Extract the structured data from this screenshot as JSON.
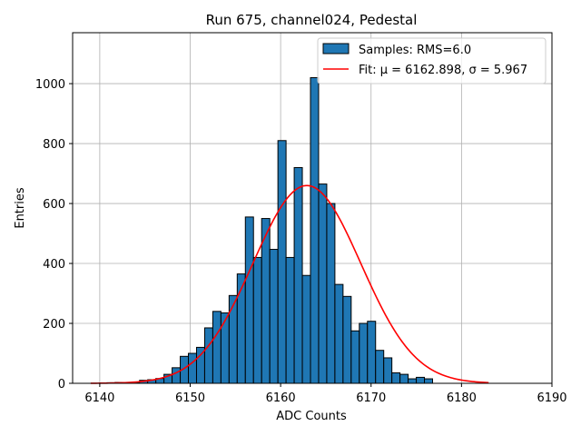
{
  "chart_data": {
    "type": "bar",
    "title": "Run 675, channel024, Pedestal",
    "xlabel": "ADC Counts",
    "ylabel": "Entries",
    "xlim": [
      6137,
      6190
    ],
    "ylim": [
      0,
      1170
    ],
    "xticks": [
      6140,
      6150,
      6160,
      6170,
      6180,
      6190
    ],
    "yticks": [
      0,
      200,
      400,
      600,
      800,
      1000
    ],
    "grid": true,
    "legend_position": "top-right",
    "colors": {
      "bars": "#1f77b4",
      "bar_edge": "#000000",
      "fit": "#ff0000",
      "grid": "#b0b0b0"
    },
    "histogram": {
      "name": "Samples: RMS=6.0",
      "bin_edges_start": 6139,
      "bin_width": 0.9,
      "counts": [
        0,
        0,
        2,
        3,
        2,
        3,
        10,
        12,
        16,
        30,
        52,
        90,
        100,
        120,
        185,
        240,
        235,
        293,
        365,
        555,
        420,
        550,
        447,
        810,
        420,
        720,
        360,
        1020,
        665,
        600,
        330,
        290,
        175,
        200,
        207,
        110,
        85,
        35,
        30,
        15,
        20,
        15,
        0,
        0,
        0,
        0,
        0,
        0,
        0,
        0,
        0,
        0,
        0,
        0,
        0
      ]
    },
    "fit": {
      "name": "Fit: μ = 6162.898, σ = 5.967",
      "mu": 6162.898,
      "sigma": 5.967,
      "amplitude": 660,
      "x_range": [
        6139,
        6183
      ]
    }
  }
}
